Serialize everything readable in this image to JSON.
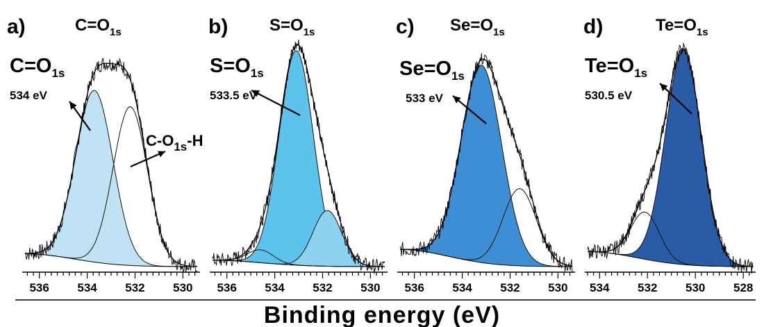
{
  "chart_data": [
    {
      "type": "line",
      "panel": "a)",
      "title": "C=O",
      "title_sub": "1s",
      "peak_label": "C=O",
      "peak_sub": "1s",
      "peak_energy": "534 eV",
      "extra_label": "C-O",
      "extra_sub": "1s",
      "extra_suffix": "-H",
      "xlim": [
        536.6,
        529.4
      ],
      "ticks": [
        "536",
        "534",
        "532",
        "530"
      ],
      "tick_values": [
        536,
        534,
        532,
        530
      ],
      "baseline": 0.06,
      "components": [
        {
          "center": 533.7,
          "height": 0.8,
          "sigma": 0.78,
          "color": "#bfe2f4"
        },
        {
          "center": 532.2,
          "height": 0.74,
          "sigma": 0.72,
          "color": "none"
        }
      ]
    },
    {
      "type": "line",
      "panel": "b)",
      "title": "S=O",
      "title_sub": "1s",
      "peak_label": "S=O",
      "peak_sub": "1s",
      "peak_energy": "533.5 eV",
      "xlim": [
        536.6,
        529.4
      ],
      "ticks": [
        "536",
        "534",
        "532",
        "530"
      ],
      "tick_values": [
        536,
        534,
        532,
        530
      ],
      "baseline": 0.03,
      "components": [
        {
          "center": 533.1,
          "height": 1.0,
          "sigma": 0.72,
          "color": "#5bc3ec"
        },
        {
          "center": 531.8,
          "height": 0.26,
          "sigma": 0.6,
          "color": "#8dd2f0"
        },
        {
          "center": 534.6,
          "height": 0.06,
          "sigma": 0.55,
          "color": "none"
        }
      ]
    },
    {
      "type": "line",
      "panel": "c)",
      "title": "Se=O",
      "title_sub": "1s",
      "peak_label": "Se=O",
      "peak_sub": "1s",
      "peak_energy": "533 eV",
      "xlim": [
        536.6,
        529.4
      ],
      "ticks": [
        "536",
        "534",
        "532",
        "530"
      ],
      "tick_values": [
        536,
        534,
        532,
        530
      ],
      "baseline": 0.08,
      "components": [
        {
          "center": 533.2,
          "height": 0.92,
          "sigma": 0.85,
          "color": "#3d8ed4"
        },
        {
          "center": 531.6,
          "height": 0.36,
          "sigma": 0.7,
          "color": "none"
        }
      ]
    },
    {
      "type": "line",
      "panel": "d)",
      "title": "Te=O",
      "title_sub": "1s",
      "peak_label": "Te=O",
      "peak_sub": "1s",
      "peak_energy": "530.5 eV",
      "xlim": [
        534.5,
        527.6
      ],
      "ticks": [
        "534",
        "532",
        "530",
        "528"
      ],
      "tick_values": [
        534,
        532,
        530,
        528
      ],
      "baseline": 0.07,
      "components": [
        {
          "center": 530.5,
          "height": 1.0,
          "sigma": 0.75,
          "color": "#2a5ca6"
        },
        {
          "center": 532.1,
          "height": 0.22,
          "sigma": 0.6,
          "color": "none"
        }
      ]
    }
  ],
  "xlabel": "Binding energy (eV)"
}
